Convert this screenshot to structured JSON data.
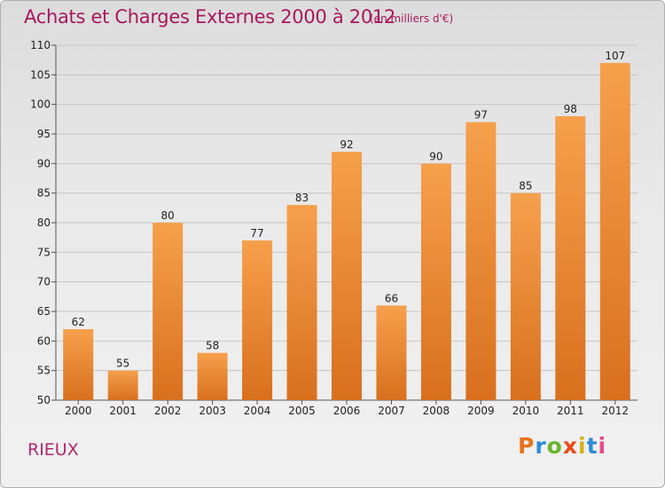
{
  "title": "Achats et Charges Externes 2000 à 2012",
  "unit_note": "(en milliers d'€)",
  "commune": "RIEUX",
  "logo": {
    "letters": [
      "P",
      "r",
      "o",
      "x",
      "i",
      "t",
      "i"
    ],
    "colors": [
      "#e8731e",
      "#2d8cd6",
      "#6ab42d",
      "#e84a1a",
      "#d6b01c",
      "#2d8cd6",
      "#e84a8c"
    ]
  },
  "colors": {
    "title": "#a8185c",
    "bar_top": "#f6a04c",
    "bar_bottom": "#d8701e",
    "grid": "#c4c4c4"
  },
  "chart_data": {
    "type": "bar",
    "title": "Achats et Charges Externes 2000 à 2012",
    "xlabel": "",
    "ylabel": "",
    "categories": [
      "2000",
      "2001",
      "2002",
      "2003",
      "2004",
      "2005",
      "2006",
      "2007",
      "2008",
      "2009",
      "2010",
      "2011",
      "2012"
    ],
    "values": [
      62,
      55,
      80,
      58,
      77,
      83,
      92,
      66,
      90,
      97,
      85,
      98,
      107
    ],
    "ylim": [
      50,
      110
    ],
    "yticks": [
      50,
      55,
      60,
      65,
      70,
      75,
      80,
      85,
      90,
      95,
      100,
      105,
      110
    ],
    "grid": true,
    "data_labels": true
  }
}
